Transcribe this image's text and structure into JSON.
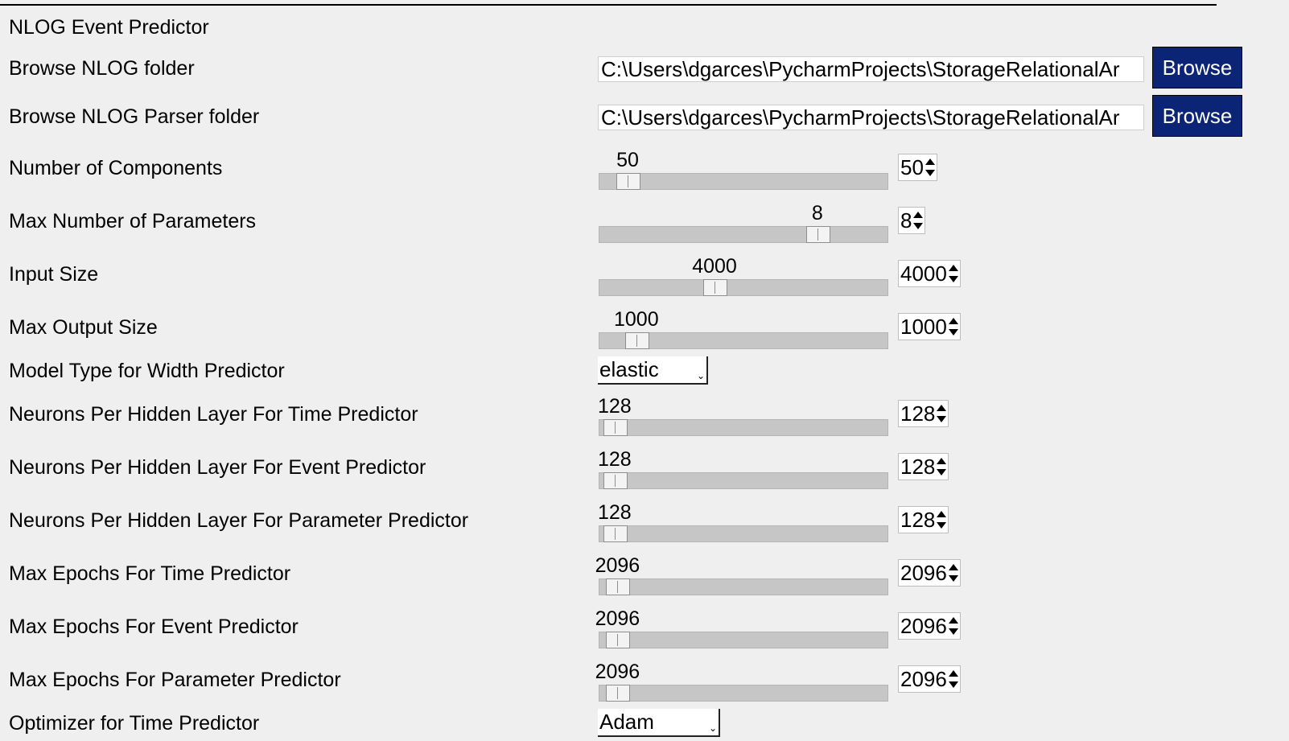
{
  "title": "NLOG Event Predictor",
  "nlog_folder": {
    "label": "Browse NLOG folder",
    "value": "C:\\Users\\dgarces\\PycharmProjects\\StorageRelationalAr",
    "button": "Browse"
  },
  "parser_folder": {
    "label": "Browse NLOG Parser folder",
    "value": "C:\\Users\\dgarces\\PycharmProjects\\StorageRelationalAr",
    "button": "Browse"
  },
  "num_components": {
    "label": "Number of Components",
    "slider_value": "50",
    "spin_value": "50",
    "fraction": 0.1
  },
  "max_params": {
    "label": "Max Number of Parameters",
    "slider_value": "8",
    "spin_value": "8",
    "fraction": 0.755
  },
  "input_size": {
    "label": "Input Size",
    "slider_value": "4000",
    "spin_value": "4000",
    "fraction": 0.4
  },
  "max_output": {
    "label": "Max Output Size",
    "slider_value": "1000",
    "spin_value": "1000",
    "fraction": 0.13
  },
  "model_type": {
    "label": "Model Type for Width Predictor",
    "value": "elastic"
  },
  "neurons_time": {
    "label": "Neurons Per Hidden Layer For Time Predictor",
    "slider_value": "128",
    "spin_value": "128",
    "fraction": 0.055
  },
  "neurons_event": {
    "label": "Neurons Per Hidden Layer For Event Predictor",
    "slider_value": "128",
    "spin_value": "128",
    "fraction": 0.055
  },
  "neurons_param": {
    "label": "Neurons Per Hidden Layer For Parameter Predictor",
    "slider_value": "128",
    "spin_value": "128",
    "fraction": 0.055
  },
  "epochs_time": {
    "label": "Max Epochs For Time Predictor",
    "slider_value": "2096",
    "spin_value": "2096",
    "fraction": 0.065
  },
  "epochs_event": {
    "label": "Max Epochs For Event Predictor",
    "slider_value": "2096",
    "spin_value": "2096",
    "fraction": 0.065
  },
  "epochs_param": {
    "label": "Max Epochs For Parameter Predictor",
    "slider_value": "2096",
    "spin_value": "2096",
    "fraction": 0.065
  },
  "optimizer_time": {
    "label": "Optimizer for Time Predictor",
    "value": "Adam"
  },
  "colors": {
    "background": "#efefef",
    "button": "#0c2475",
    "trough": "#c6c6c6"
  }
}
